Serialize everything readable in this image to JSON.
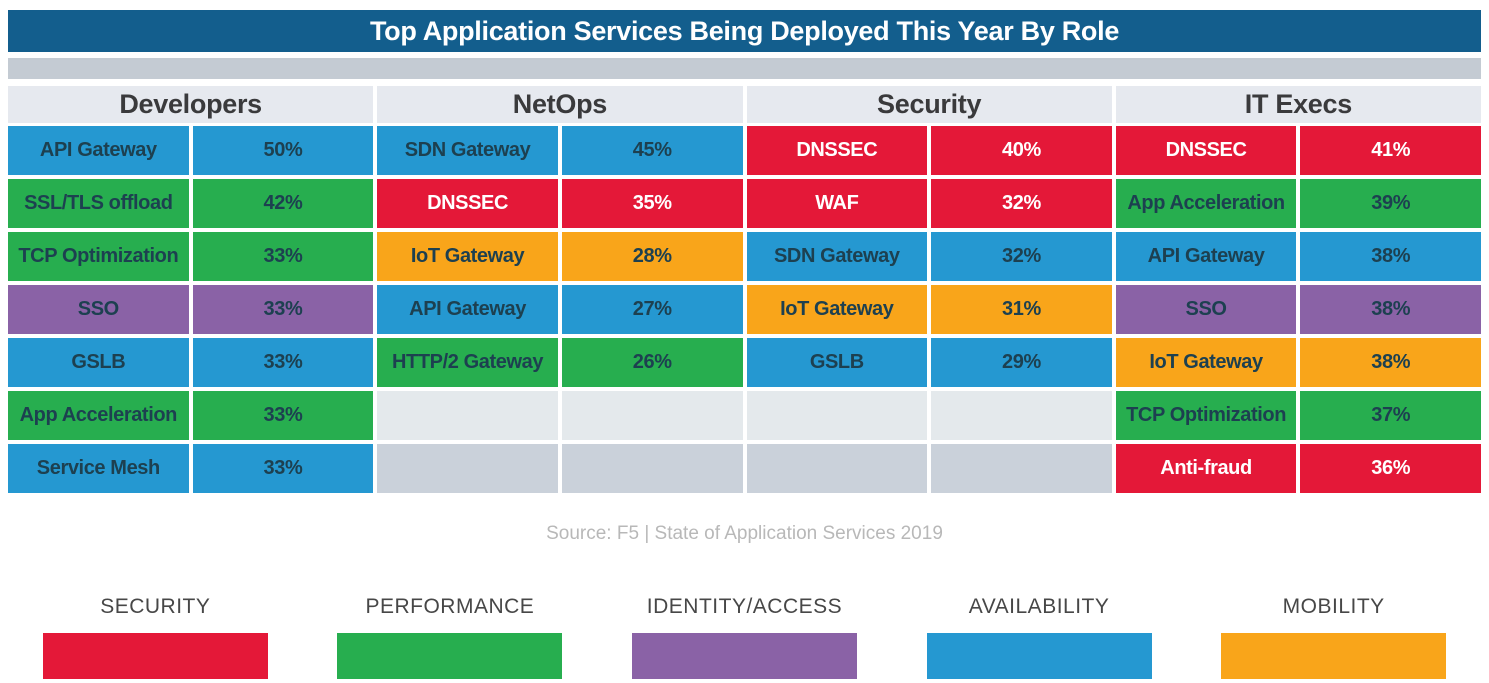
{
  "colors": {
    "title_bar": "#135e8d",
    "security": "#e41838",
    "performance": "#27ae4f",
    "identity": "#8a62a6",
    "availability": "#2598d1",
    "mobility": "#f9a51a",
    "empty_light": "#e4e9ec",
    "empty_dark": "#cad1da"
  },
  "chart_data": {
    "type": "table",
    "title": "Top Application Services Being Deployed This Year By Role",
    "source": "Source: F5 | State of Application Services 2019",
    "legend": [
      {
        "label": "SECURITY",
        "category": "security"
      },
      {
        "label": "PERFORMANCE",
        "category": "performance"
      },
      {
        "label": "IDENTITY/ACCESS",
        "category": "identity"
      },
      {
        "label": "AVAILABILITY",
        "category": "availability"
      },
      {
        "label": "MOBILITY",
        "category": "mobility"
      }
    ],
    "columns": [
      {
        "role": "Developers",
        "rows": [
          {
            "service": "API Gateway",
            "value": "50%",
            "pct": 50,
            "category": "availability"
          },
          {
            "service": "SSL/TLS offload",
            "value": "42%",
            "pct": 42,
            "category": "performance"
          },
          {
            "service": "TCP Optimization",
            "value": "33%",
            "pct": 33,
            "category": "performance"
          },
          {
            "service": "SSO",
            "value": "33%",
            "pct": 33,
            "category": "identity"
          },
          {
            "service": "GSLB",
            "value": "33%",
            "pct": 33,
            "category": "availability"
          },
          {
            "service": "App Acceleration",
            "value": "33%",
            "pct": 33,
            "category": "performance"
          },
          {
            "service": "Service Mesh",
            "value": "33%",
            "pct": 33,
            "category": "availability"
          }
        ]
      },
      {
        "role": "NetOps",
        "rows": [
          {
            "service": "SDN Gateway",
            "value": "45%",
            "pct": 45,
            "category": "availability"
          },
          {
            "service": "DNSSEC",
            "value": "35%",
            "pct": 35,
            "category": "security"
          },
          {
            "service": "IoT Gateway",
            "value": "28%",
            "pct": 28,
            "category": "mobility"
          },
          {
            "service": "API Gateway",
            "value": "27%",
            "pct": 27,
            "category": "availability"
          },
          {
            "service": "HTTP/2 Gateway",
            "value": "26%",
            "pct": 26,
            "category": "performance"
          },
          {
            "service": "",
            "value": "",
            "pct": null,
            "category": "empty-light"
          },
          {
            "service": "",
            "value": "",
            "pct": null,
            "category": "empty-dark"
          }
        ]
      },
      {
        "role": "Security",
        "rows": [
          {
            "service": "DNSSEC",
            "value": "40%",
            "pct": 40,
            "category": "security"
          },
          {
            "service": "WAF",
            "value": "32%",
            "pct": 32,
            "category": "security"
          },
          {
            "service": "SDN Gateway",
            "value": "32%",
            "pct": 32,
            "category": "availability"
          },
          {
            "service": "IoT Gateway",
            "value": "31%",
            "pct": 31,
            "category": "mobility"
          },
          {
            "service": "GSLB",
            "value": "29%",
            "pct": 29,
            "category": "availability"
          },
          {
            "service": "",
            "value": "",
            "pct": null,
            "category": "empty-light"
          },
          {
            "service": "",
            "value": "",
            "pct": null,
            "category": "empty-dark"
          }
        ]
      },
      {
        "role": "IT Execs",
        "rows": [
          {
            "service": "DNSSEC",
            "value": "41%",
            "pct": 41,
            "category": "security"
          },
          {
            "service": "App Acceleration",
            "value": "39%",
            "pct": 39,
            "category": "performance"
          },
          {
            "service": "API Gateway",
            "value": "38%",
            "pct": 38,
            "category": "availability"
          },
          {
            "service": "SSO",
            "value": "38%",
            "pct": 38,
            "category": "identity"
          },
          {
            "service": "IoT Gateway",
            "value": "38%",
            "pct": 38,
            "category": "mobility"
          },
          {
            "service": "TCP Optimization",
            "value": "37%",
            "pct": 37,
            "category": "performance"
          },
          {
            "service": "Anti-fraud",
            "value": "36%",
            "pct": 36,
            "category": "security"
          }
        ]
      }
    ]
  }
}
